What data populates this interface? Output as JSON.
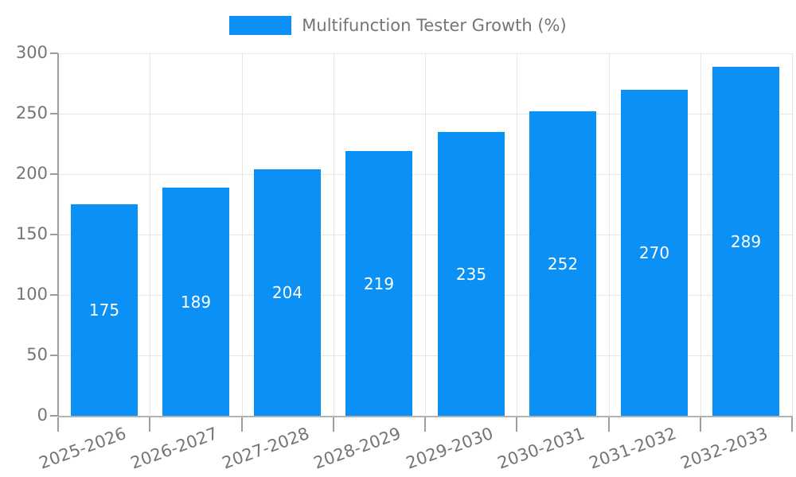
{
  "chart_data": {
    "type": "bar",
    "title": "Multifunction Tester Growth (%)",
    "categories": [
      "2025-2026",
      "2026-2027",
      "2027-2028",
      "2028-2029",
      "2029-2030",
      "2030-2031",
      "2031-2032",
      "2032-2033"
    ],
    "values": [
      175,
      189,
      204,
      219,
      235,
      252,
      270,
      289
    ],
    "xlabel": "",
    "ylabel": "",
    "ylim": [
      0,
      300
    ],
    "yticks": [
      0,
      50,
      100,
      150,
      200,
      250,
      300
    ],
    "grid": true,
    "legend_position": "top-center",
    "value_labels": "inside-center",
    "colors": {
      "bar": "#0b90f5",
      "grid": "#e6e6e6",
      "axis": "#9e9e9e",
      "baseline": "#b3b3b3",
      "text": "#757575",
      "value_label": "#ffffff",
      "background": "#ffffff"
    }
  }
}
